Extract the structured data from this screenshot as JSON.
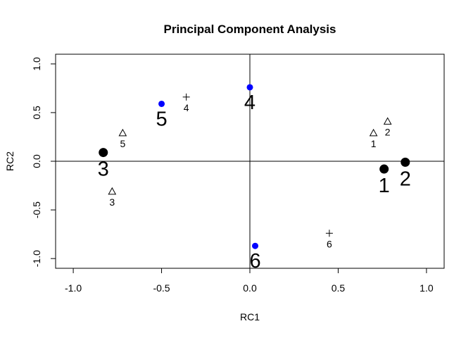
{
  "chart_data": {
    "type": "scatter",
    "title": "Principal Component Analysis",
    "xlabel": "RC1",
    "ylabel": "RC2",
    "xlim": [
      -1.1,
      1.1
    ],
    "ylim": [
      -1.1,
      1.1
    ],
    "x_ticks": [
      "-1.0",
      "-0.5",
      "0.0",
      "0.5",
      "1.0"
    ],
    "y_ticks": [
      "-1.0",
      "-0.5",
      "0.0",
      "0.5",
      "1.0"
    ],
    "reference_lines": {
      "x": 0,
      "y": 0
    },
    "grid": false,
    "series": [
      {
        "marker": "filled-circle-large",
        "color": "#000000",
        "points": [
          {
            "label": "1",
            "x": 0.76,
            "y": -0.08
          },
          {
            "label": "2",
            "x": 0.88,
            "y": -0.01
          },
          {
            "label": "3",
            "x": -0.83,
            "y": 0.09
          }
        ]
      },
      {
        "marker": "filled-circle-small",
        "color": "#0000ff",
        "points": [
          {
            "label": "4",
            "x": 0.0,
            "y": 0.76
          },
          {
            "label": "5",
            "x": -0.5,
            "y": 0.59
          },
          {
            "label": "6",
            "x": 0.03,
            "y": -0.87
          }
        ]
      },
      {
        "marker": "triangle",
        "color": "#000000",
        "points": [
          {
            "label": "1",
            "x": 0.7,
            "y": 0.29
          },
          {
            "label": "2",
            "x": 0.78,
            "y": 0.41
          },
          {
            "label": "3",
            "x": -0.78,
            "y": -0.31
          },
          {
            "label": "5",
            "x": -0.72,
            "y": 0.29
          }
        ]
      },
      {
        "marker": "plus",
        "color": "#000000",
        "points": [
          {
            "label": "4",
            "x": -0.36,
            "y": 0.66
          },
          {
            "label": "6",
            "x": 0.45,
            "y": -0.74
          }
        ]
      }
    ]
  }
}
